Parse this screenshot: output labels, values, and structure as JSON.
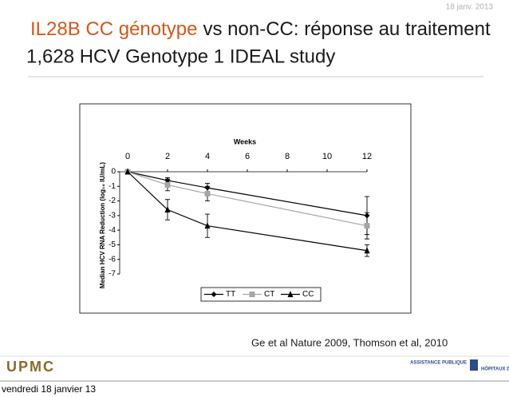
{
  "slide": {
    "date": "18 janv. 2013",
    "title_highlight": "IL28B CC génotype",
    "title_rest": "vs non-CC: réponse au traitement",
    "subtitle": "1,628 HCV Genotype 1 IDEAL study",
    "citation": "Ge et al Nature 2009, Thomson et al, 2010",
    "logo_left": "UPMC",
    "logo_right_1": "ASSISTANCE PUBLIQUE",
    "logo_right_2": "HÔPITAUX DE PARIS",
    "footer": "vendredi 18 janvier 13"
  },
  "chart_data": {
    "type": "line",
    "x_label": "Weeks",
    "y_label": "Median HCV RNA Reduction (log₁₀ IU/mL)",
    "x": [
      0,
      2,
      4,
      12
    ],
    "xlim": [
      0,
      12
    ],
    "xticks": [
      0,
      2,
      4,
      6,
      8,
      10,
      12
    ],
    "ylim": [
      -7,
      0
    ],
    "yticks": [
      0,
      -1,
      -2,
      -3,
      -4,
      -5,
      -6,
      -7
    ],
    "legend": "bottom",
    "series": [
      {
        "name": "TT",
        "color": "#000000",
        "marker": "diamond",
        "values": [
          0,
          -0.6,
          -1.1,
          -3.0
        ],
        "errors": [
          0,
          0.2,
          0.3,
          1.3
        ]
      },
      {
        "name": "CT",
        "color": "#a6a6a6",
        "marker": "square",
        "values": [
          0,
          -0.9,
          -1.5,
          -3.7
        ],
        "errors": [
          0,
          0.4,
          0.5,
          0.9
        ]
      },
      {
        "name": "CC",
        "color": "#000000",
        "marker": "triangle",
        "values": [
          0,
          -2.6,
          -3.7,
          -5.4
        ],
        "errors": [
          0,
          0.7,
          0.8,
          0.4
        ]
      }
    ]
  }
}
